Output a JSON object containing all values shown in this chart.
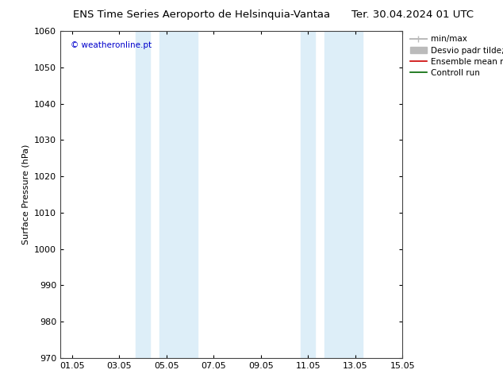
{
  "title_left": "ENS Time Series Aeroporto de Helsinquia-Vantaa",
  "title_right": "Ter. 30.04.2024 01 UTC",
  "ylabel": "Surface Pressure (hPa)",
  "ylim": [
    970,
    1060
  ],
  "yticks": [
    970,
    980,
    990,
    1000,
    1010,
    1020,
    1030,
    1040,
    1050,
    1060
  ],
  "xlim_start": 0,
  "xlim_end": 14.5,
  "xtick_labels": [
    "01.05",
    "03.05",
    "05.05",
    "07.05",
    "09.05",
    "11.05",
    "13.05",
    "15.05"
  ],
  "xtick_positions": [
    0.5,
    2.5,
    4.5,
    6.5,
    8.5,
    10.5,
    12.5,
    14.5
  ],
  "shaded_bands": [
    {
      "x_start": 3.2,
      "x_end": 3.8,
      "color": "#ddeef8"
    },
    {
      "x_start": 4.2,
      "x_end": 5.8,
      "color": "#ddeef8"
    },
    {
      "x_start": 10.2,
      "x_end": 10.8,
      "color": "#ddeef8"
    },
    {
      "x_start": 11.2,
      "x_end": 12.8,
      "color": "#ddeef8"
    }
  ],
  "copyright_text": "© weatheronline.pt",
  "copyright_color": "#0000cc",
  "legend_entries": [
    {
      "label": "min/max",
      "color": "#bbbbbb",
      "linewidth": 1.5
    },
    {
      "label": "Desvio padr tilde;o",
      "color": "#bbbbbb",
      "linewidth": 5
    },
    {
      "label": "Ensemble mean run",
      "color": "#cc0000",
      "linewidth": 1.2
    },
    {
      "label": "Controll run",
      "color": "#006600",
      "linewidth": 1.2
    }
  ],
  "bg_color": "#ffffff",
  "plot_bg_color": "#ffffff",
  "title_fontsize": 9.5,
  "axis_label_fontsize": 8,
  "tick_fontsize": 8,
  "legend_fontsize": 7.5
}
